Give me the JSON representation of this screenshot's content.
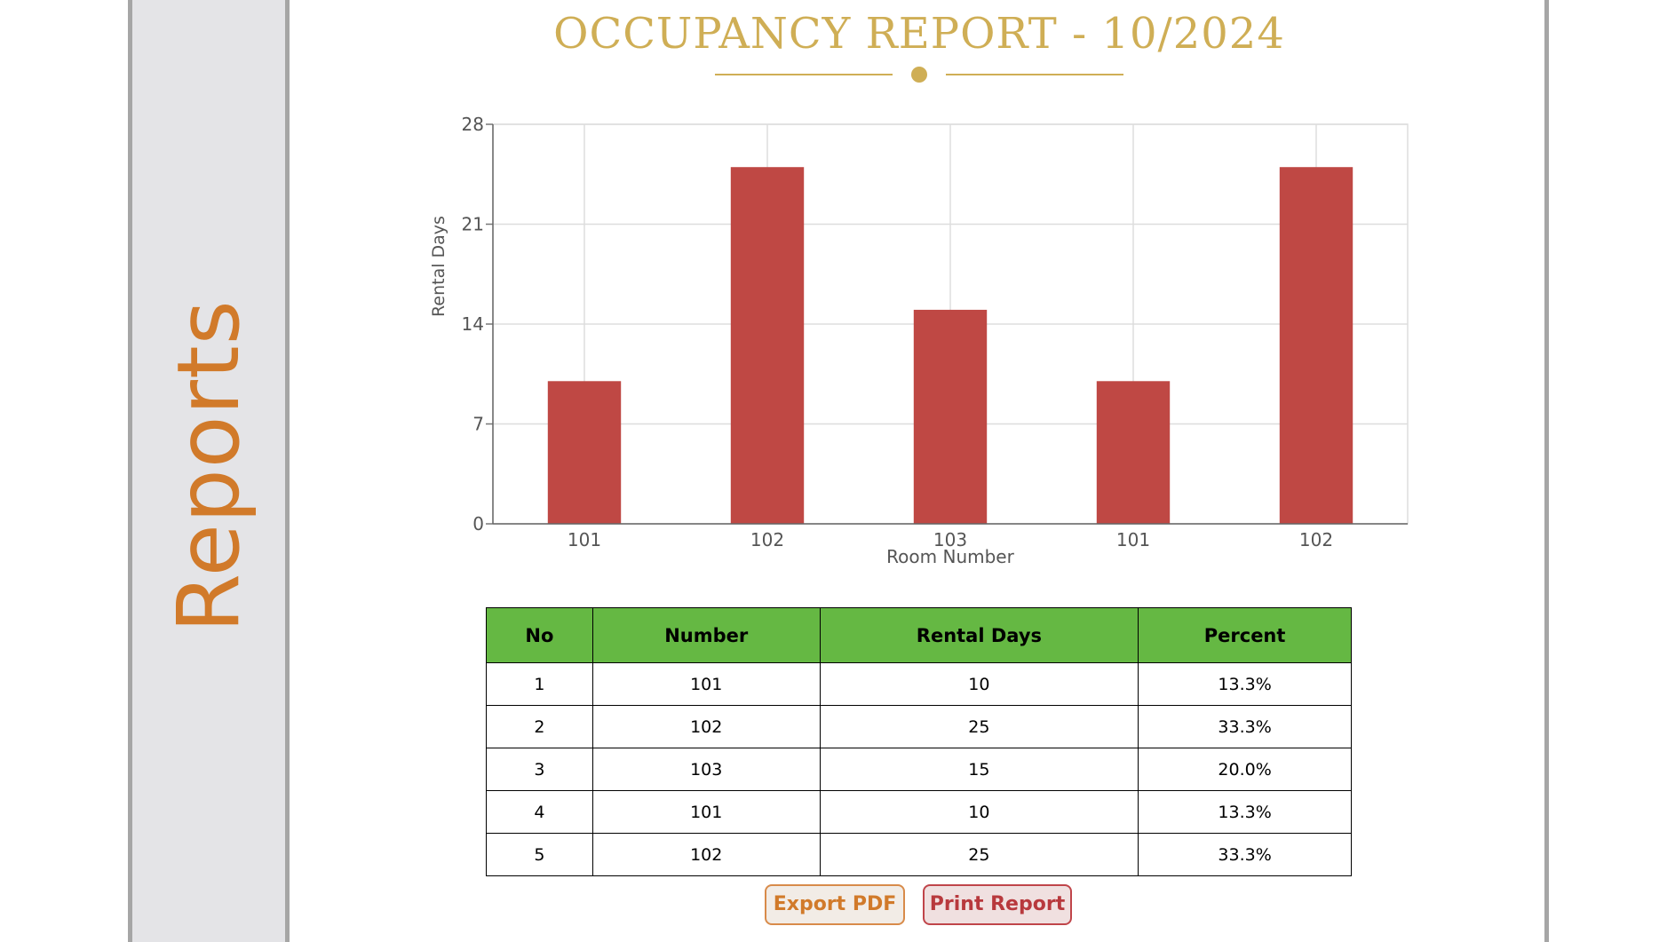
{
  "sidebar": {
    "label": "Reports"
  },
  "report": {
    "title": "OCCUPANCY REPORT - 10/2024"
  },
  "colors": {
    "accent": "#cfae55",
    "bar": "#bf4844",
    "header_bg": "#65b843",
    "sidebar_text": "#d17a2a"
  },
  "chart_data": {
    "type": "bar",
    "categories": [
      "101",
      "102",
      "103",
      "101",
      "102"
    ],
    "values": [
      10,
      25,
      15,
      10,
      25
    ],
    "title": "",
    "xlabel": "Room Number",
    "ylabel": "Rental Days",
    "ylim": [
      0,
      28
    ],
    "yticks": [
      0,
      7,
      14,
      21,
      28
    ],
    "grid": true
  },
  "table": {
    "headers": [
      "No",
      "Number",
      "Rental Days",
      "Percent"
    ],
    "rows": [
      [
        "1",
        "101",
        "10",
        "13.3%"
      ],
      [
        "2",
        "102",
        "25",
        "33.3%"
      ],
      [
        "3",
        "103",
        "15",
        "20.0%"
      ],
      [
        "4",
        "101",
        "10",
        "13.3%"
      ],
      [
        "5",
        "102",
        "25",
        "33.3%"
      ]
    ]
  },
  "actions": {
    "export_label": "Export PDF",
    "print_label": "Print Report"
  }
}
